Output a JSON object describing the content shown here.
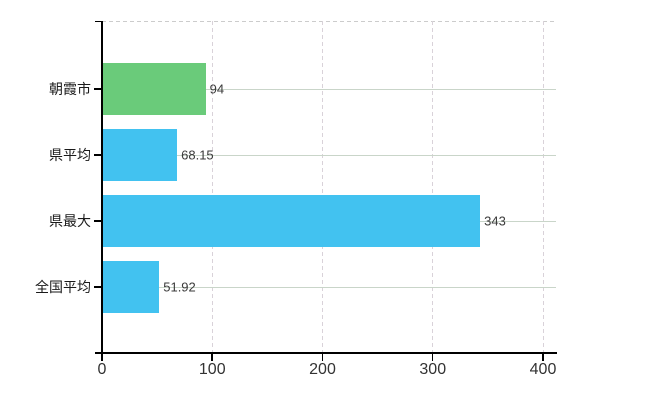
{
  "chart_data": {
    "type": "bar",
    "orientation": "horizontal",
    "title": "",
    "categories": [
      "朝霞市",
      "県平均",
      "県最大",
      "全国平均"
    ],
    "values": [
      94,
      68.15,
      343,
      51.92
    ],
    "value_labels": [
      "94",
      "68.15",
      "343",
      "51.92"
    ],
    "bar_colors": [
      "#6acb7a",
      "#42c2f0",
      "#42c2f0",
      "#42c2f0"
    ],
    "xlim": [
      0,
      400
    ],
    "x_ticks": [
      "0",
      "100",
      "200",
      "300",
      "400"
    ],
    "x_tick_values": [
      0,
      100,
      200,
      300,
      400
    ],
    "grid": true,
    "legend": false,
    "annotations": []
  },
  "colors": {
    "background": "#ffffff",
    "axis": "#000000",
    "grid_horizontal": "#c9d5c9",
    "grid_vertical": "#d9d2d9",
    "plot_top_border": "#cccccc",
    "tick_label": "#333333",
    "value_label": "#3a3a3a",
    "category_label": "#1a1a1a",
    "bar_green": "#6acb7a",
    "bar_blue": "#42c2f0"
  }
}
